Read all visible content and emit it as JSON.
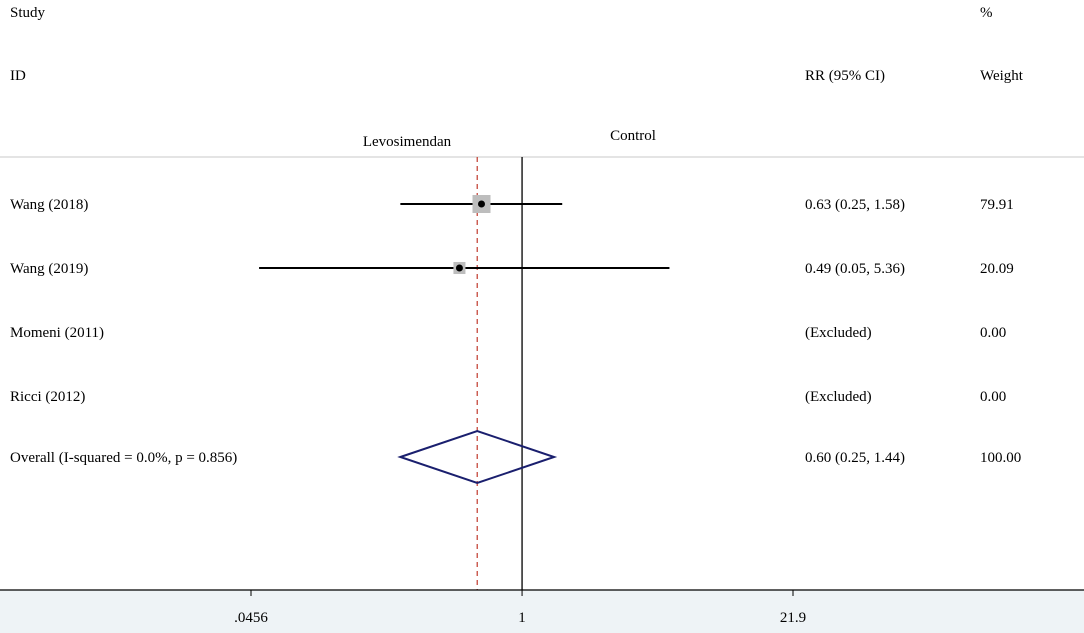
{
  "chart_data": {
    "type": "forest",
    "headers": {
      "study_line1": "Study",
      "study_line2": "ID",
      "effect_header": "RR (95% CI)",
      "weight_line1": "%",
      "weight_line2": "Weight"
    },
    "favours": {
      "left": "Levosimendan",
      "right": "Control"
    },
    "x_scale": "log",
    "xlim": [
      0.0456,
      21.9
    ],
    "x_ticks": [
      {
        "value": 0.0456,
        "label": ".0456"
      },
      {
        "value": 1,
        "label": "1"
      },
      {
        "value": 21.9,
        "label": "21.9"
      }
    ],
    "null_line": 1,
    "overall_line": 0.6,
    "studies": [
      {
        "name": "Wang (2018)",
        "rr": 0.63,
        "lo": 0.25,
        "hi": 1.58,
        "ci_text": "0.63 (0.25, 1.58)",
        "weight": 79.91,
        "weight_text": "79.91",
        "excluded": false
      },
      {
        "name": "Wang (2019)",
        "rr": 0.49,
        "lo": 0.05,
        "hi": 5.36,
        "ci_text": "0.49 (0.05, 5.36)",
        "weight": 20.09,
        "weight_text": "20.09",
        "excluded": false
      },
      {
        "name": "Momeni (2011)",
        "rr": null,
        "lo": null,
        "hi": null,
        "ci_text": "(Excluded)",
        "weight": 0,
        "weight_text": "0.00",
        "excluded": true
      },
      {
        "name": "Ricci (2012)",
        "rr": null,
        "lo": null,
        "hi": null,
        "ci_text": "(Excluded)",
        "weight": 0,
        "weight_text": "0.00",
        "excluded": true
      }
    ],
    "overall": {
      "label": "Overall  (I-squared = 0.0%, p = 0.856)",
      "rr": 0.6,
      "lo": 0.25,
      "hi": 1.44,
      "ci_text": "0.60 (0.25, 1.44)",
      "weight_text": "100.00"
    },
    "colors": {
      "diamond": "#1a1f6e",
      "overall_line": "#c0392b",
      "weight_box": "#bdbdbd",
      "axis_band": "#eef3f6"
    }
  }
}
